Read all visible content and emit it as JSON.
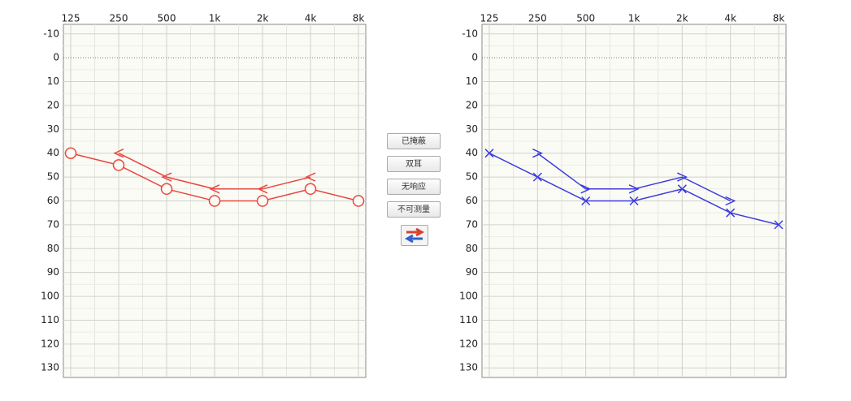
{
  "chart_data": [
    {
      "type": "line",
      "categories": [
        "125",
        "250",
        "500",
        "1k",
        "2k",
        "4k",
        "8k"
      ],
      "ylim": [
        -14,
        134
      ],
      "y_inverted": true,
      "xaxis_position": "top",
      "yticks": [
        -10,
        0,
        10,
        20,
        30,
        40,
        50,
        60,
        70,
        80,
        90,
        100,
        110,
        120,
        130
      ],
      "grid": true,
      "series": [
        {
          "color": "#e8473f",
          "marker": "circle",
          "values": [
            40,
            45,
            55,
            60,
            60,
            55,
            60
          ]
        },
        {
          "color": "#e8473f",
          "marker": "<",
          "values": [
            null,
            40,
            50,
            55,
            55,
            50,
            null
          ]
        }
      ]
    },
    {
      "type": "line",
      "categories": [
        "125",
        "250",
        "500",
        "1k",
        "2k",
        "4k",
        "8k"
      ],
      "ylim": [
        -14,
        134
      ],
      "y_inverted": true,
      "xaxis_position": "top",
      "yticks": [
        -10,
        0,
        10,
        20,
        30,
        40,
        50,
        60,
        70,
        80,
        90,
        100,
        110,
        120,
        130
      ],
      "grid": true,
      "series": [
        {
          "color": "#3b3bdd",
          "marker": "x",
          "values": [
            40,
            50,
            60,
            60,
            55,
            65,
            70
          ]
        },
        {
          "color": "#3b3bdd",
          "marker": ">",
          "values": [
            null,
            40,
            55,
            55,
            50,
            60,
            null
          ]
        }
      ]
    }
  ],
  "buttons": [
    "已掩蔽",
    "双耳",
    "无响应",
    "不可测量"
  ]
}
